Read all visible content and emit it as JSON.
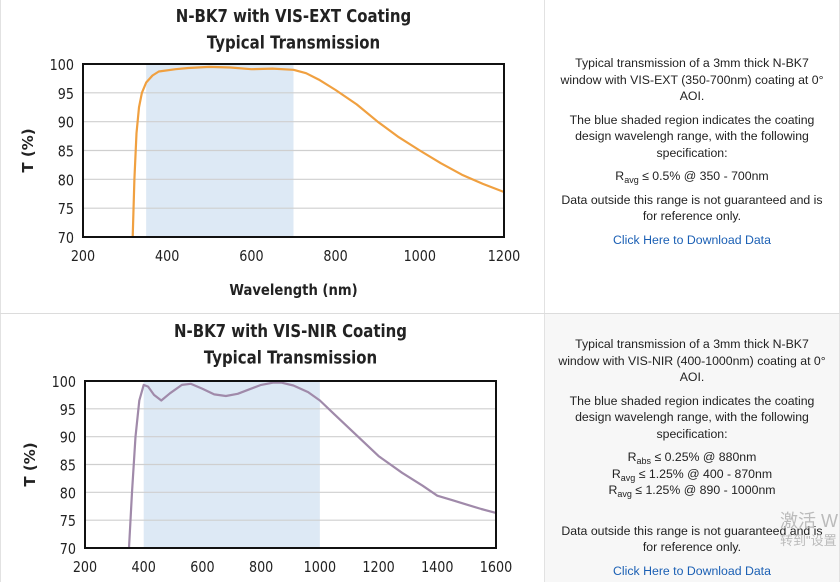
{
  "chart_data": [
    {
      "type": "line",
      "title": "N-BK7 with VIS-EXT Coating",
      "subtitle": "Typical Transmission",
      "xlabel": "Wavelength (nm)",
      "ylabel": "T (%)",
      "xlim": [
        200,
        1200
      ],
      "ylim": [
        70,
        100
      ],
      "xticks": [
        200,
        400,
        600,
        800,
        1000,
        1200
      ],
      "yticks": [
        70,
        75,
        80,
        85,
        90,
        95,
        100
      ],
      "grid": true,
      "shaded_range": [
        350,
        700
      ],
      "shade_color": "#dde9f5",
      "line_color": "#f0a040",
      "x": [
        318,
        322,
        327,
        333,
        340,
        350,
        365,
        380,
        420,
        450,
        500,
        550,
        600,
        650,
        700,
        730,
        760,
        800,
        850,
        900,
        950,
        1000,
        1050,
        1100,
        1150,
        1200
      ],
      "y": [
        70,
        80,
        88,
        92.5,
        95,
        96.8,
        98,
        98.7,
        99.1,
        99.3,
        99.5,
        99.4,
        99.1,
        99.2,
        99,
        98.4,
        97.3,
        95.5,
        93,
        90,
        87.3,
        85,
        82.8,
        80.8,
        79.2,
        77.8
      ]
    },
    {
      "type": "line",
      "title": "N-BK7 with VIS-NIR Coating",
      "subtitle": "Typical Transmission",
      "ylabel": "T (%)",
      "xlim": [
        200,
        1600
      ],
      "ylim": [
        70,
        100
      ],
      "xticks": [
        200,
        400,
        600,
        800,
        1000,
        1200,
        1400,
        1600
      ],
      "yticks": [
        70,
        75,
        80,
        85,
        90,
        95,
        100
      ],
      "grid": true,
      "shaded_range": [
        400,
        1000
      ],
      "shade_color": "#dde9f5",
      "line_color": "#a08aaa",
      "x": [
        350,
        360,
        372,
        385,
        400,
        415,
        435,
        460,
        490,
        530,
        560,
        600,
        640,
        680,
        720,
        760,
        800,
        840,
        870,
        910,
        960,
        1000,
        1050,
        1100,
        1150,
        1200,
        1280,
        1350,
        1400,
        1450,
        1500,
        1550,
        1600
      ],
      "y": [
        70,
        80,
        90,
        96.5,
        99.3,
        99,
        97.5,
        96.5,
        97.8,
        99.3,
        99.5,
        98.6,
        97.6,
        97.3,
        97.7,
        98.5,
        99.3,
        99.7,
        99.7,
        99.2,
        98,
        96.5,
        94,
        91.5,
        89,
        86.5,
        83.5,
        81.2,
        79.4,
        78.6,
        77.8,
        77,
        76.3
      ]
    }
  ],
  "panels": [
    {
      "description": "Typical transmission of a 3mm thick N-BK7 window with VIS-EXT (350-700nm) coating at 0° AOI.",
      "shaded_note": "The blue shaded region indicates the coating design wavelengh range, with the following specification:",
      "specs": [
        {
          "symbol": "R",
          "sub": "avg",
          "text": "≤ 0.5% @ 350 - 700nm"
        }
      ],
      "disclaimer": "Data outside this range is not guaranteed and is for reference only.",
      "download_label": "Click Here to Download Data"
    },
    {
      "description": "Typical transmission of a 3mm thick N-BK7 window with VIS-NIR (400-1000nm) coating at 0° AOI.",
      "shaded_note": "The blue shaded region indicates the coating design wavelengh range, with the following specification:",
      "specs": [
        {
          "symbol": "R",
          "sub": "abs",
          "text": "≤ 0.25% @ 880nm"
        },
        {
          "symbol": "R",
          "sub": "avg",
          "text": "≤ 1.25% @ 400 - 870nm"
        },
        {
          "symbol": "R",
          "sub": "avg",
          "text": "≤ 1.25% @ 890 - 1000nm"
        }
      ],
      "disclaimer": "Data outside this range is not guaranteed and is for reference only.",
      "download_label": "Click Here to Download Data"
    }
  ],
  "watermark": {
    "line1": "激活 W",
    "line2": "转到\"设置"
  }
}
